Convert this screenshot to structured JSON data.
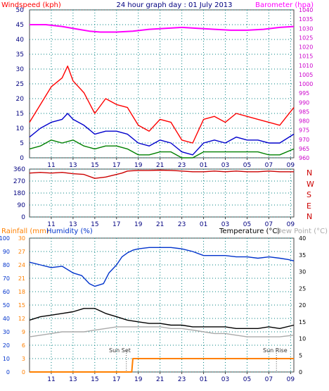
{
  "header": {
    "title": "24 hour graph day : 01 July 2013",
    "left_label": "Windspeed (kph)",
    "right_label": "Barometer (hpa)"
  },
  "colors": {
    "windspeed": "#ff0000",
    "gust": "#ff0000",
    "avg_wind": "#0000cc",
    "min_wind": "#008000",
    "barometer": "#ff00ff",
    "direction": "#cc0000",
    "humidity": "#0033cc",
    "temperature": "#000000",
    "dewpoint": "#aaaaaa",
    "rainfall": "#ff8000",
    "frame": "#444444",
    "grid": "#008080"
  },
  "panel2": {
    "compass": [
      "N",
      "W",
      "S",
      "E",
      "N"
    ]
  },
  "panel3": {
    "rain_label": "Rainfall (mm)",
    "humidity_label": "Humidity (%)",
    "temp_label": "Temperature (°C)",
    "dew_label": "Dew Point (°C)",
    "sunset_label": "Sun Set",
    "sunrise_label": "Sun Rise"
  },
  "chart_data": [
    {
      "type": "line",
      "title": "24 hour graph day : 01 July 2013",
      "x_ticks": [
        "11",
        "13",
        "15",
        "17",
        "19",
        "21",
        "23",
        "01",
        "03",
        "05",
        "07",
        "09"
      ],
      "y_left": {
        "label": "Windspeed (kph)",
        "ticks": [
          0,
          5,
          10,
          15,
          20,
          25,
          30,
          35,
          40,
          45,
          50
        ],
        "lim": [
          0,
          50
        ]
      },
      "y_right": {
        "label": "Barometer (hpa)",
        "ticks": [
          960,
          965,
          970,
          975,
          980,
          985,
          990,
          995,
          1000,
          1005,
          1010,
          1015,
          1020,
          1025,
          1030,
          1035,
          1040
        ],
        "lim": [
          960,
          1040
        ]
      },
      "x_range": [
        9.0,
        33.3
      ],
      "series": [
        {
          "name": "Barometer",
          "color_key": "barometer",
          "axis": "right",
          "x": [
            9.0,
            10.5,
            12.0,
            13.5,
            14.5,
            15.5,
            17.0,
            18.5,
            20.0,
            21.5,
            23.0,
            24.5,
            26.0,
            27.5,
            29.0,
            30.5,
            32.0,
            33.3
          ],
          "y": [
            1032,
            1032,
            1031,
            1029.5,
            1028.5,
            1028,
            1028,
            1028.5,
            1029.5,
            1030,
            1030.5,
            1030,
            1029.5,
            1029,
            1029,
            1029.5,
            1030.5,
            1031
          ]
        },
        {
          "name": "Gust",
          "color_key": "gust",
          "axis": "left",
          "x": [
            9.0,
            10.0,
            11.0,
            12.0,
            12.5,
            13.0,
            14.0,
            15.0,
            16.0,
            17.0,
            18.0,
            19.0,
            20.0,
            21.0,
            22.0,
            23.0,
            24.0,
            25.0,
            26.0,
            27.0,
            28.0,
            29.0,
            30.0,
            31.0,
            32.0,
            33.3
          ],
          "y": [
            12,
            18,
            24,
            27,
            31,
            26,
            22,
            15,
            20,
            18,
            17,
            11,
            9,
            13,
            12,
            6,
            5,
            13,
            14,
            12,
            15,
            14,
            13,
            12,
            11,
            17
          ]
        },
        {
          "name": "Average",
          "color_key": "avg_wind",
          "axis": "left",
          "x": [
            9.0,
            10.0,
            11.0,
            12.0,
            12.5,
            13.0,
            14.0,
            15.0,
            16.0,
            17.0,
            18.0,
            19.0,
            20.0,
            21.0,
            22.0,
            23.0,
            24.0,
            25.0,
            26.0,
            27.0,
            28.0,
            29.0,
            30.0,
            31.0,
            32.0,
            33.3
          ],
          "y": [
            7,
            10,
            12,
            13,
            15,
            13,
            11,
            8,
            9,
            9,
            8,
            5,
            4,
            6,
            5,
            2,
            1,
            5,
            6,
            5,
            7,
            6,
            6,
            5,
            5,
            8
          ]
        },
        {
          "name": "Minimum",
          "color_key": "min_wind",
          "axis": "left",
          "x": [
            9.0,
            10.0,
            11.0,
            12.0,
            13.0,
            14.0,
            15.0,
            16.0,
            17.0,
            18.0,
            19.0,
            20.0,
            21.0,
            22.0,
            23.0,
            24.0,
            25.0,
            26.0,
            27.0,
            28.0,
            29.0,
            30.0,
            31.0,
            32.0,
            33.3
          ],
          "y": [
            3,
            4,
            6,
            5,
            6,
            4,
            3,
            4,
            4,
            3,
            1,
            1,
            2,
            2,
            0,
            0,
            2,
            2,
            2,
            2,
            2,
            2,
            1,
            1,
            3
          ]
        }
      ]
    },
    {
      "type": "line",
      "title": "",
      "x_ticks": [
        "11",
        "13",
        "15",
        "17",
        "19",
        "21",
        "23",
        "01",
        "03",
        "05",
        "07",
        "09"
      ],
      "y_left": {
        "label": "",
        "ticks": [
          0,
          90,
          180,
          270,
          360
        ],
        "lim": [
          0,
          360
        ]
      },
      "y_right": {
        "ticks": [
          "N",
          "W",
          "S",
          "E",
          "N"
        ]
      },
      "x_range": [
        9.0,
        33.3
      ],
      "series": [
        {
          "name": "Wind direction",
          "color_key": "direction",
          "x": [
            9.0,
            10.0,
            11.0,
            12.0,
            13.0,
            14.0,
            15.0,
            16.0,
            17.0,
            17.5,
            18.0,
            19.0,
            20.0,
            21.0,
            22.0,
            23.0,
            24.0,
            25.0,
            26.0,
            27.0,
            28.0,
            29.0,
            30.0,
            31.0,
            32.0,
            33.3
          ],
          "y": [
            330,
            335,
            330,
            335,
            325,
            320,
            290,
            300,
            320,
            330,
            345,
            350,
            350,
            352,
            350,
            345,
            340,
            340,
            345,
            340,
            345,
            340,
            340,
            345,
            340,
            340
          ]
        }
      ]
    },
    {
      "type": "line",
      "title": "",
      "x_ticks": [
        "11",
        "13",
        "15",
        "17",
        "19",
        "21",
        "23",
        "01",
        "03",
        "05",
        "07",
        "09"
      ],
      "y_left_rain": {
        "label": "Rainfall (mm)",
        "ticks": [
          0,
          3,
          6,
          9,
          12,
          15,
          18,
          21,
          24,
          27,
          30
        ],
        "lim": [
          0,
          30
        ]
      },
      "y_left_humidity": {
        "label": "Humidity (%)",
        "ticks": [
          0,
          10,
          20,
          30,
          40,
          50,
          60,
          70,
          80,
          90,
          100
        ],
        "lim": [
          0,
          100
        ]
      },
      "y_right": {
        "label": "Temperature (°C)",
        "ticks": [
          0,
          5,
          10,
          15,
          20,
          25,
          30,
          35,
          40
        ],
        "lim": [
          0,
          40
        ]
      },
      "x_range": [
        9.0,
        33.3
      ],
      "annotations": [
        "Sun Set",
        "Sun Rise"
      ],
      "series": [
        {
          "name": "Humidity",
          "color_key": "humidity",
          "axis": "humidity",
          "x": [
            9.0,
            10.0,
            11.0,
            12.0,
            13.0,
            13.8,
            14.5,
            15.0,
            15.8,
            16.3,
            17.0,
            17.5,
            18.0,
            18.5,
            19.0,
            20.0,
            21.0,
            22.0,
            23.0,
            24.0,
            25.0,
            26.0,
            27.0,
            28.0,
            29.0,
            30.0,
            31.0,
            32.0,
            32.8,
            33.3
          ],
          "y": [
            82,
            80,
            78,
            79,
            74,
            72,
            66,
            64,
            66,
            74,
            80,
            86,
            89,
            91,
            92,
            93,
            93,
            93,
            92,
            90,
            87,
            87,
            87,
            86,
            86,
            85,
            86,
            85,
            84,
            83
          ]
        },
        {
          "name": "Temperature",
          "color_key": "temperature",
          "axis": "temp",
          "x": [
            9.0,
            10.0,
            11.0,
            12.0,
            13.0,
            14.0,
            15.0,
            16.0,
            17.0,
            18.0,
            19.0,
            20.0,
            21.0,
            22.0,
            23.0,
            24.0,
            25.0,
            26.0,
            27.0,
            28.0,
            29.0,
            30.0,
            31.0,
            32.0,
            33.3
          ],
          "y": [
            15.5,
            16.5,
            17,
            17.5,
            18,
            19,
            19,
            17.5,
            16.5,
            15.5,
            15,
            14.5,
            14.5,
            14,
            14,
            13.5,
            13.5,
            13.5,
            13.5,
            13,
            13,
            13,
            13.5,
            13,
            14
          ]
        },
        {
          "name": "Dew Point",
          "color_key": "dewpoint",
          "axis": "temp",
          "x": [
            9.0,
            10.0,
            11.0,
            12.0,
            13.0,
            14.0,
            15.0,
            16.0,
            17.0,
            18.0,
            19.0,
            20.0,
            21.0,
            22.0,
            23.0,
            24.0,
            25.0,
            26.0,
            27.0,
            28.0,
            29.0,
            30.0,
            31.0,
            32.0,
            33.3
          ],
          "y": [
            10.5,
            11,
            11.5,
            12,
            12,
            12,
            12.5,
            13,
            13.5,
            13.5,
            13.5,
            13.5,
            13.5,
            13,
            13,
            12.5,
            12,
            11.5,
            11.5,
            11,
            10.5,
            10.5,
            10.5,
            10.5,
            11
          ]
        },
        {
          "name": "Rainfall",
          "color_key": "rainfall",
          "axis": "rain",
          "x": [
            9.0,
            18.4,
            18.5,
            33.3
          ],
          "y": [
            0,
            0,
            3,
            3
          ]
        }
      ]
    }
  ]
}
